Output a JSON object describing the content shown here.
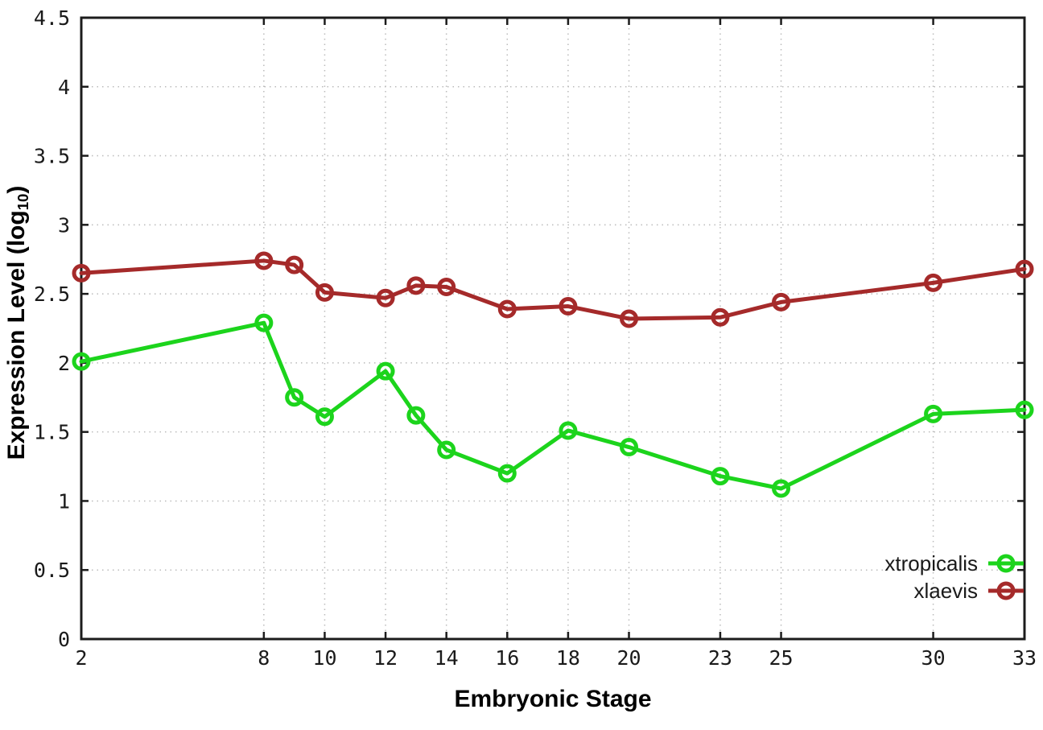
{
  "chart_data": {
    "type": "line",
    "title": "",
    "xlabel": "Embryonic Stage",
    "ylabel": {
      "main": "Expression Level (log",
      "sub": "10",
      "suffix": ")"
    },
    "xlim": [
      2,
      33
    ],
    "ylim": [
      0,
      4.5
    ],
    "grid": true,
    "legend_position": "bottom-right",
    "x": [
      2,
      8,
      9,
      10,
      12,
      13,
      14,
      16,
      18,
      20,
      23,
      25,
      30,
      33
    ],
    "xticks": {
      "values": [
        2,
        8,
        10,
        12,
        14,
        16,
        18,
        20,
        23,
        25,
        30,
        33
      ],
      "labels": [
        "2",
        "8",
        "10",
        "12",
        "14",
        "16",
        "18",
        "20",
        "23",
        "25",
        "30",
        "33"
      ]
    },
    "yticks": {
      "values": [
        0,
        0.5,
        1,
        1.5,
        2,
        2.5,
        3,
        3.5,
        4,
        4.5
      ],
      "labels": [
        "0",
        "0.5",
        "1",
        "1.5",
        "2",
        "2.5",
        "3",
        "3.5",
        "4",
        "4.5"
      ]
    },
    "series": [
      {
        "name": "xtropicalis",
        "color": "#1cd41c",
        "marker": "open-circle",
        "values": [
          2.01,
          2.29,
          1.75,
          1.61,
          1.94,
          1.62,
          1.37,
          1.2,
          1.51,
          1.39,
          1.18,
          1.09,
          1.63,
          1.66
        ]
      },
      {
        "name": "xlaevis",
        "color": "#a52a2a",
        "marker": "open-circle",
        "values": [
          2.65,
          2.74,
          2.71,
          2.51,
          2.47,
          2.56,
          2.55,
          2.39,
          2.41,
          2.32,
          2.33,
          2.44,
          2.58,
          2.68
        ]
      }
    ],
    "styles": {
      "grid_color": "#bbbbbb",
      "border_color": "#1c1c1c",
      "text_color": "#1a1a1a",
      "background": "#ffffff",
      "line_width": 5,
      "marker_radius": 9,
      "marker_stroke": 5
    }
  }
}
